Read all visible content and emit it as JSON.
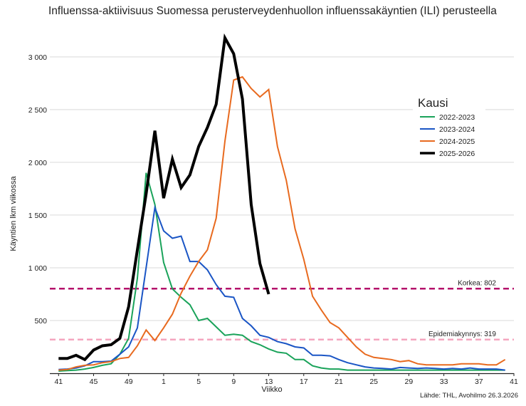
{
  "chart_data": {
    "type": "line",
    "title": "Influenssa-aktiivisuus Suomessa perusterveydenhuollon influenssakäyntien (ILI) perusteella",
    "xlabel": "Viikko",
    "ylabel": "Käyntien lkm viikossa",
    "source": "Lähde: THL, Avohilmo 26.3.2026",
    "x_ticks": [
      "41",
      "45",
      "49",
      "1",
      "5",
      "9",
      "13",
      "17",
      "21",
      "25",
      "29",
      "33",
      "37",
      "41"
    ],
    "y_ticks": [
      {
        "value": 500,
        "label": "500"
      },
      {
        "value": 1000,
        "label": "1 000"
      },
      {
        "value": 1500,
        "label": "1 500"
      },
      {
        "value": 2000,
        "label": "2 000"
      },
      {
        "value": 2500,
        "label": "2 500"
      },
      {
        "value": 3000,
        "label": "3 000"
      }
    ],
    "xlim": [
      -1,
      52
    ],
    "ylim": [
      0,
      3350
    ],
    "legend": {
      "title": "Kausi",
      "position": "right"
    },
    "reference_lines": [
      {
        "name": "korkea",
        "label": "Korkea: 802",
        "value": 802,
        "color": "#b5126b"
      },
      {
        "name": "epidemiakynnys",
        "label": "Epidemiakynnys: 319",
        "value": 319,
        "color": "#f4a6bf"
      }
    ],
    "series": [
      {
        "name": "2022-2023",
        "color": "#1aa35a",
        "width": 2,
        "values": [
          20,
          25,
          30,
          40,
          55,
          75,
          90,
          180,
          330,
          900,
          1900,
          1600,
          1050,
          800,
          720,
          650,
          500,
          520,
          440,
          360,
          370,
          360,
          300,
          270,
          230,
          200,
          190,
          130,
          130,
          70,
          50,
          40,
          40,
          30,
          30,
          30,
          30,
          30,
          30,
          30,
          30,
          30,
          30,
          30,
          30,
          30,
          30,
          30,
          30,
          30,
          30,
          30
        ]
      },
      {
        "name": "2023-2024",
        "color": "#1a55c5",
        "width": 2,
        "values": [
          35,
          40,
          50,
          70,
          110,
          110,
          115,
          180,
          250,
          430,
          1000,
          1570,
          1350,
          1280,
          1300,
          1060,
          1060,
          980,
          840,
          730,
          720,
          520,
          450,
          360,
          340,
          300,
          280,
          250,
          240,
          170,
          170,
          165,
          130,
          100,
          80,
          60,
          50,
          45,
          40,
          55,
          50,
          45,
          50,
          45,
          40,
          45,
          40,
          50,
          40,
          40,
          40,
          30
        ]
      },
      {
        "name": "2024-2025",
        "color": "#e86a1f",
        "width": 2,
        "values": [
          30,
          35,
          60,
          75,
          80,
          100,
          110,
          140,
          150,
          260,
          410,
          310,
          430,
          560,
          760,
          920,
          1060,
          1170,
          1470,
          2200,
          2780,
          2810,
          2700,
          2620,
          2690,
          2150,
          1830,
          1370,
          1080,
          730,
          600,
          480,
          430,
          340,
          250,
          180,
          150,
          140,
          130,
          110,
          120,
          90,
          80,
          80,
          80,
          80,
          90,
          90,
          90,
          80,
          80,
          130
        ]
      },
      {
        "name": "2025-2026",
        "color": "#000000",
        "width": 4,
        "values": [
          140,
          140,
          170,
          130,
          220,
          260,
          270,
          330,
          630,
          1170,
          1700,
          2300,
          1660,
          2030,
          1760,
          1880,
          2150,
          2330,
          2550,
          3180,
          3030,
          2600,
          1600,
          1040,
          750
        ]
      }
    ]
  }
}
